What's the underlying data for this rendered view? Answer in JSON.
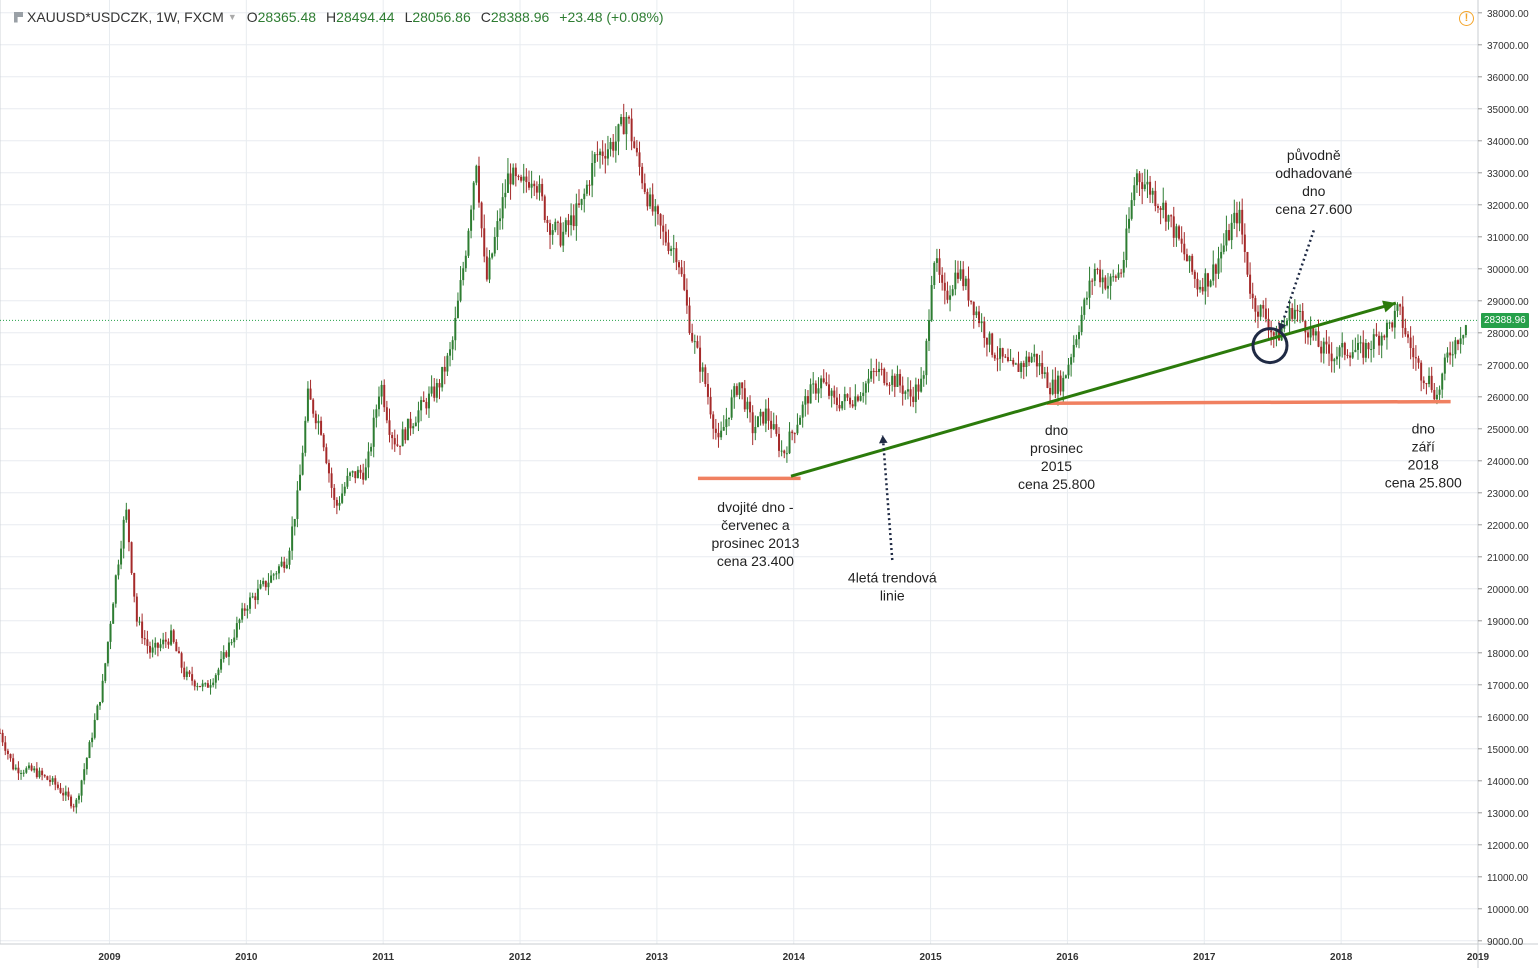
{
  "header": {
    "symbol": "XAUUSD*USDCZK, 1W, FXCM",
    "open_label": "O",
    "open": "28365.48",
    "high_label": "H",
    "high": "28494.44",
    "low_label": "L",
    "low": "28056.86",
    "close_label": "C",
    "close": "28388.96",
    "change": "+23.48 (+0.08%)"
  },
  "alert_icon": "exclamation-icon",
  "last_price_label": "28388.96",
  "colors": {
    "up": "#2e7d32",
    "down": "#a52a2a",
    "trendline": "#2b7a0b",
    "support": "#f08060",
    "grid": "#e8ecf0",
    "price_line": "#26a04a"
  },
  "chart_data": {
    "type": "candlestick",
    "timeframe": "1W",
    "x_axis": {
      "ticks": [
        "2009",
        "2010",
        "2011",
        "2012",
        "2013",
        "2014",
        "2015",
        "2016",
        "2017",
        "2018",
        "2019"
      ],
      "range": [
        2008.2,
        2019.0
      ]
    },
    "y_axis": {
      "ticks": [
        "9000.00",
        "10000.00",
        "11000.00",
        "12000.00",
        "13000.00",
        "14000.00",
        "15000.00",
        "16000.00",
        "17000.00",
        "18000.00",
        "19000.00",
        "20000.00",
        "21000.00",
        "22000.00",
        "23000.00",
        "24000.00",
        "25000.00",
        "26000.00",
        "27000.00",
        "28000.00",
        "29000.00",
        "30000.00",
        "31000.00",
        "32000.00",
        "33000.00",
        "34000.00",
        "35000.00",
        "36000.00",
        "37000.00",
        "38000.00"
      ],
      "range": [
        8900,
        38400
      ]
    },
    "grid": true,
    "last_price": 28388.96,
    "price_path": [
      [
        2008.2,
        15500
      ],
      [
        2008.3,
        14400
      ],
      [
        2008.45,
        14300
      ],
      [
        2008.6,
        13900
      ],
      [
        2008.75,
        13200
      ],
      [
        2008.85,
        15000
      ],
      [
        2008.95,
        17000
      ],
      [
        2009.05,
        20500
      ],
      [
        2009.12,
        22500
      ],
      [
        2009.2,
        19000
      ],
      [
        2009.3,
        18000
      ],
      [
        2009.45,
        18500
      ],
      [
        2009.55,
        17300
      ],
      [
        2009.7,
        16900
      ],
      [
        2009.8,
        17500
      ],
      [
        2009.9,
        18500
      ],
      [
        2010.0,
        19500
      ],
      [
        2010.15,
        20200
      ],
      [
        2010.3,
        21000
      ],
      [
        2010.38,
        23000
      ],
      [
        2010.45,
        26000
      ],
      [
        2010.55,
        25000
      ],
      [
        2010.65,
        22500
      ],
      [
        2010.75,
        23500
      ],
      [
        2010.88,
        23700
      ],
      [
        2010.98,
        26500
      ],
      [
        2011.05,
        25000
      ],
      [
        2011.1,
        24500
      ],
      [
        2011.25,
        25500
      ],
      [
        2011.4,
        26300
      ],
      [
        2011.5,
        27500
      ],
      [
        2011.6,
        30500
      ],
      [
        2011.68,
        33500
      ],
      [
        2011.75,
        29500
      ],
      [
        2011.82,
        31000
      ],
      [
        2011.92,
        33000
      ],
      [
        2012.0,
        32500
      ],
      [
        2012.1,
        33000
      ],
      [
        2012.2,
        31500
      ],
      [
        2012.3,
        31000
      ],
      [
        2012.45,
        32000
      ],
      [
        2012.55,
        33500
      ],
      [
        2012.7,
        34000
      ],
      [
        2012.78,
        34800
      ],
      [
        2012.85,
        33500
      ],
      [
        2012.95,
        32000
      ],
      [
        2013.05,
        31000
      ],
      [
        2013.15,
        30500
      ],
      [
        2013.25,
        28000
      ],
      [
        2013.35,
        26500
      ],
      [
        2013.45,
        24500
      ],
      [
        2013.52,
        25500
      ],
      [
        2013.6,
        26500
      ],
      [
        2013.7,
        25000
      ],
      [
        2013.8,
        25500
      ],
      [
        2013.92,
        24200
      ],
      [
        2014.0,
        25000
      ],
      [
        2014.1,
        26000
      ],
      [
        2014.2,
        26500
      ],
      [
        2014.3,
        25800
      ],
      [
        2014.45,
        26000
      ],
      [
        2014.6,
        26800
      ],
      [
        2014.75,
        26500
      ],
      [
        2014.85,
        26000
      ],
      [
        2014.95,
        26500
      ],
      [
        2015.02,
        30500
      ],
      [
        2015.1,
        29000
      ],
      [
        2015.2,
        30000
      ],
      [
        2015.3,
        29000
      ],
      [
        2015.45,
        27500
      ],
      [
        2015.6,
        26800
      ],
      [
        2015.75,
        27300
      ],
      [
        2015.88,
        26300
      ],
      [
        2015.97,
        26500
      ],
      [
        2016.1,
        28500
      ],
      [
        2016.2,
        30000
      ],
      [
        2016.3,
        29500
      ],
      [
        2016.4,
        30000
      ],
      [
        2016.5,
        33000
      ],
      [
        2016.6,
        32500
      ],
      [
        2016.72,
        31800
      ],
      [
        2016.85,
        30500
      ],
      [
        2016.95,
        29500
      ],
      [
        2017.05,
        29800
      ],
      [
        2017.15,
        30800
      ],
      [
        2017.25,
        31800
      ],
      [
        2017.35,
        29000
      ],
      [
        2017.45,
        28500
      ],
      [
        2017.52,
        27800
      ],
      [
        2017.58,
        28200
      ],
      [
        2017.65,
        28800
      ],
      [
        2017.75,
        28200
      ],
      [
        2017.85,
        27500
      ],
      [
        2017.95,
        27300
      ],
      [
        2018.05,
        27500
      ],
      [
        2018.15,
        27400
      ],
      [
        2018.25,
        27800
      ],
      [
        2018.35,
        28200
      ],
      [
        2018.42,
        28700
      ],
      [
        2018.5,
        27600
      ],
      [
        2018.58,
        26800
      ],
      [
        2018.65,
        26500
      ],
      [
        2018.7,
        26000
      ],
      [
        2018.78,
        27300
      ],
      [
        2018.87,
        28000
      ],
      [
        2018.93,
        28390
      ]
    ],
    "annotations": [
      {
        "text": "dvojité dno -\nčervenec a\nprosinec 2013\ncena 23.400",
        "x": 2013.72,
        "y": 22400
      },
      {
        "text": "4letá trendová\nlinie",
        "x": 2014.72,
        "y": 20200
      },
      {
        "text": "dno\nprosinec\n2015\ncena 25.800",
        "x": 2015.92,
        "y": 24800
      },
      {
        "text": "původně\nodhadované\ndno\ncena 27.600",
        "x": 2017.8,
        "y": 33400
      },
      {
        "text": "dno\nzáří\n2018\ncena 25.800",
        "x": 2018.6,
        "y": 24850
      }
    ],
    "support_lines": [
      {
        "name": "support-2013",
        "from": [
          2013.3,
          23450
        ],
        "to": [
          2014.05,
          23450
        ]
      },
      {
        "name": "support-2015-2018",
        "from": [
          2015.85,
          25800
        ],
        "to": [
          2018.8,
          25850
        ]
      }
    ],
    "trendline": {
      "from": [
        2013.98,
        23520
      ],
      "to": [
        2018.4,
        28930
      ]
    },
    "circle_marker": {
      "x": 2017.48,
      "y": 27600
    },
    "dotted_arrows": [
      {
        "name": "arrow-to-trendline",
        "from": [
          2014.72,
          20900
        ],
        "to": [
          2014.65,
          24800
        ]
      },
      {
        "name": "arrow-to-circle",
        "from": [
          2017.8,
          31200
        ],
        "to": [
          2017.55,
          28050
        ]
      }
    ]
  }
}
